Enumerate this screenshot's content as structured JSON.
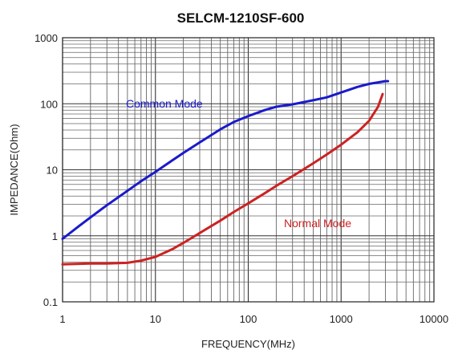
{
  "chart_data": {
    "type": "line",
    "title": "SELCM-1210SF-600",
    "xlabel": "FREQUENCY(MHz)",
    "ylabel": "IMPEDANCE(Ohm)",
    "x_scale": "log",
    "y_scale": "log",
    "xlim": [
      1,
      10000
    ],
    "ylim": [
      0.1,
      1000
    ],
    "grid": true,
    "x_ticks": [
      "1",
      "10",
      "100",
      "1000",
      "10000"
    ],
    "y_ticks": [
      "0.1",
      "1",
      "10",
      "100",
      "1000"
    ],
    "series": [
      {
        "name": "Common Mode",
        "color": "#1a1acc",
        "x": [
          1,
          1.5,
          2,
          3,
          5,
          7,
          10,
          15,
          20,
          30,
          50,
          70,
          100,
          150,
          200,
          300,
          500,
          700,
          1000,
          1500,
          2000,
          3000,
          3200
        ],
        "y": [
          0.9,
          1.4,
          1.9,
          2.9,
          4.8,
          6.7,
          9.3,
          13.7,
          18,
          26,
          41,
          53,
          65,
          80,
          90,
          98,
          113,
          125,
          148,
          180,
          200,
          220,
          220
        ]
      },
      {
        "name": "Normal Mode",
        "color": "#cc2222",
        "x": [
          1,
          2,
          3,
          5,
          7,
          10,
          15,
          20,
          30,
          50,
          70,
          100,
          150,
          200,
          300,
          500,
          700,
          1000,
          1500,
          2000,
          2500,
          2800
        ],
        "y": [
          0.37,
          0.38,
          0.38,
          0.39,
          0.42,
          0.48,
          0.62,
          0.78,
          1.1,
          1.7,
          2.3,
          3.1,
          4.4,
          5.7,
          8,
          12.5,
          17,
          24,
          37,
          55,
          90,
          140
        ]
      }
    ]
  }
}
